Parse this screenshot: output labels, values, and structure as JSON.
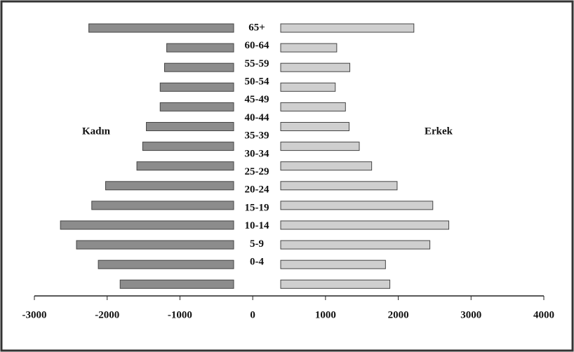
{
  "chart_data": {
    "type": "pyramid",
    "categories": [
      "65+",
      "60-64",
      "55-59",
      "50-54",
      "45-49",
      "40-44",
      "35-39",
      "30-34",
      "25-29",
      "20-24",
      "15-19",
      "10-14",
      "5-9",
      "0-4"
    ],
    "series": [
      {
        "name": "Kadın",
        "color": "#8c8c8c",
        "values": [
          -1990,
          -920,
          -950,
          -1010,
          -1010,
          -1200,
          -1250,
          -1330,
          -1760,
          -1950,
          -2380,
          -2160,
          -1860,
          -1560
        ]
      },
      {
        "name": "Erkek",
        "color": "#cfcfcf",
        "values": [
          1830,
          770,
          950,
          750,
          890,
          940,
          1080,
          1250,
          1600,
          2090,
          2310,
          2050,
          1440,
          1500
        ]
      }
    ],
    "xlim": [
      -3000,
      4000
    ],
    "xticks": [
      -3000,
      -2000,
      -1000,
      0,
      1000,
      2000,
      3000,
      4000
    ]
  }
}
